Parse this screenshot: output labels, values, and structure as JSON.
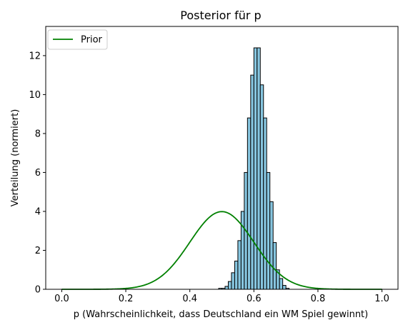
{
  "chart_data": {
    "type": "bar",
    "title": "Posterior für p",
    "xlabel": "p (Wahrscheinlichkeit, dass Deutschland ein WM Spiel gewinnt)",
    "ylabel": "Verteilung (normiert)",
    "xlim": [
      -0.05,
      1.05
    ],
    "ylim": [
      0,
      13.5
    ],
    "xticks": [
      0.0,
      0.2,
      0.4,
      0.6,
      0.8,
      1.0
    ],
    "xtick_labels": [
      "0.0",
      "0.2",
      "0.4",
      "0.6",
      "0.8",
      "1.0"
    ],
    "yticks": [
      0,
      2,
      4,
      6,
      8,
      10,
      12
    ],
    "ytick_labels": [
      "0",
      "2",
      "4",
      "6",
      "8",
      "10",
      "12"
    ],
    "legend": {
      "placement": "top-left",
      "entries": [
        "Prior"
      ]
    },
    "histogram": {
      "name": "Posterior",
      "bin_width": 0.01,
      "bin_starts": [
        0.49,
        0.5,
        0.51,
        0.52,
        0.53,
        0.54,
        0.55,
        0.56,
        0.57,
        0.58,
        0.59,
        0.6,
        0.61,
        0.62,
        0.63,
        0.64,
        0.65,
        0.66,
        0.67,
        0.68,
        0.69,
        0.7
      ],
      "values": [
        0.05,
        0.05,
        0.15,
        0.4,
        0.85,
        1.45,
        2.5,
        4.0,
        6.0,
        8.8,
        11.0,
        12.4,
        12.4,
        10.5,
        8.8,
        6.0,
        4.5,
        2.4,
        1.0,
        0.55,
        0.2,
        0.05
      ],
      "fill": "#87c6e0",
      "edge": "#000000"
    },
    "series": [
      {
        "name": "Prior",
        "type": "line",
        "distribution": "normal",
        "mean": 0.5,
        "sd": 0.1,
        "color": "#008000"
      }
    ],
    "grid": false
  }
}
